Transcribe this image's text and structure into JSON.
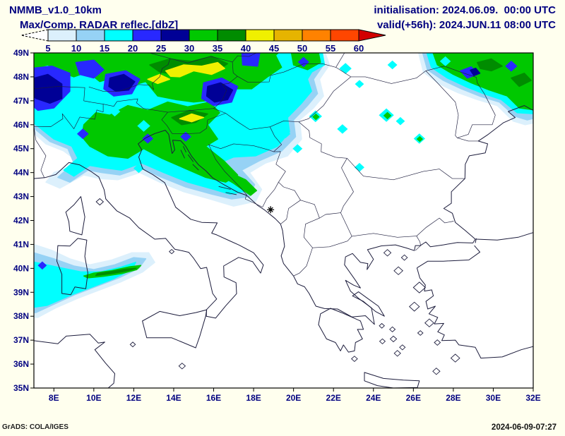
{
  "header": {
    "model_title": "NMMB_v1.0_10km",
    "field_title": "Max/Comp. RADAR reflec.[dbZ]",
    "init_line": "initialisation: 2024.06.09.  00:00 UTC",
    "valid_line": "valid(+56h): 2024.JUN.11 08:00 UTC"
  },
  "colorbar": {
    "unit": "dbZ",
    "tick_labels": [
      "5",
      "10",
      "15",
      "20",
      "25",
      "30",
      "35",
      "40",
      "45",
      "50",
      "55",
      "60"
    ],
    "segment_colors": [
      "#dcf0fc",
      "#96d2f5",
      "#00ffff",
      "#2828ff",
      "#000096",
      "#00c800",
      "#008c00",
      "#f0f000",
      "#e6b400",
      "#ff8200",
      "#ff4600"
    ],
    "under_arrow_color": "#ffffff",
    "over_arrow_color": "#d20000"
  },
  "map_axes": {
    "lat_labels": [
      "49N",
      "48N",
      "47N",
      "46N",
      "45N",
      "44N",
      "43N",
      "42N",
      "41N",
      "40N",
      "39N",
      "38N",
      "37N",
      "36N",
      "35N"
    ],
    "lon_labels": [
      "8E",
      "10E",
      "12E",
      "14E",
      "16E",
      "18E",
      "20E",
      "22E",
      "24E",
      "26E",
      "28E",
      "30E",
      "32E"
    ]
  },
  "footer": {
    "credit": "GrADS: COLA/IGES",
    "timestamp": "2024-06-09-07:27"
  },
  "colors": {
    "text": "#000080",
    "background": "#ffffee",
    "map_background": "#ffffff",
    "map_lines": "#1c1c3c",
    "frame": "#000000",
    "marker": "#000000"
  }
}
